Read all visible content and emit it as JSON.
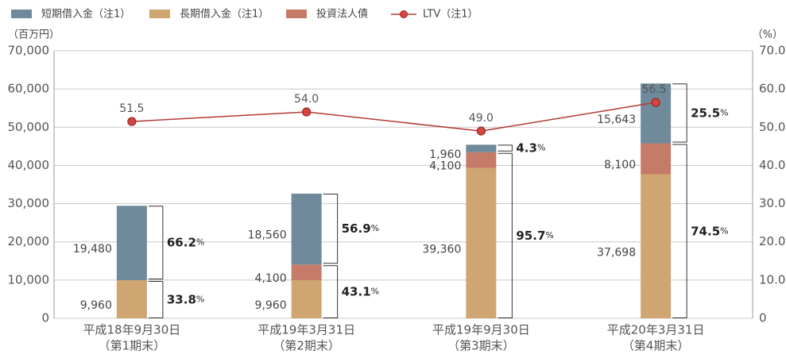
{
  "chart_data": {
    "type": "bar",
    "stacked": true,
    "y_label": "（百万円）",
    "y2_label": "（%）",
    "categories": [
      "平成18年9月30日",
      "平成19年3月31日",
      "平成19年9月30日",
      "平成20年3月31日"
    ],
    "periods": [
      "（第1期末）",
      "（第2期末）",
      "（第3期末）",
      "（第4期末）"
    ],
    "series": [
      {
        "name": "短期借入金（注1）",
        "color": "#6f8a9b",
        "values": [
          19480,
          18560,
          1960,
          15643
        ],
        "value_labels": [
          "19,480",
          "18,560",
          "1,960",
          "15,643"
        ]
      },
      {
        "name": "長期借入金（注1）",
        "color": "#cfa671",
        "values": [
          9960,
          9960,
          39360,
          37698
        ],
        "value_labels": [
          "9,960",
          "9,960",
          "39,360",
          "37,698"
        ]
      },
      {
        "name": "投資法人債",
        "color": "#c67b69",
        "values": [
          null,
          4100,
          4100,
          8100
        ],
        "value_labels": [
          null,
          "4,100",
          "4,100",
          "8,100"
        ]
      },
      {
        "name": "LTV（注1）",
        "type": "line",
        "axis": "y2",
        "color": "#b23a36",
        "values": [
          51.5,
          54.0,
          49.0,
          56.5
        ],
        "value_labels": [
          "51.5",
          "54.0",
          "49.0",
          "56.5"
        ]
      }
    ],
    "shares": {
      "unit": "%",
      "short": [
        66.2,
        56.9,
        4.3,
        25.5
      ],
      "long": [
        33.8,
        43.1,
        95.7,
        74.5
      ]
    },
    "ylim": [
      0,
      70000
    ],
    "yticks": [
      0,
      {
        "value": 10000,
        "label": "10,000"
      },
      {
        "value": 20000,
        "label": "20,000"
      },
      {
        "value": 30000,
        "label": "30,000"
      },
      {
        "value": 40000,
        "label": "40,000"
      },
      {
        "value": 50000,
        "label": "50,000"
      },
      {
        "value": 60000,
        "label": "60,000"
      },
      {
        "value": 70000,
        "label": "70,000"
      }
    ],
    "y2lim": [
      0,
      70
    ],
    "y2ticks": [
      0,
      {
        "value": 10,
        "label": "10.0"
      },
      {
        "value": 20,
        "label": "20.0"
      },
      {
        "value": 30,
        "label": "30.0"
      },
      {
        "value": 40,
        "label": "40.0"
      },
      {
        "value": 50,
        "label": "50.0"
      },
      {
        "value": 60,
        "label": "60.0"
      },
      {
        "value": 70,
        "label": "70.0"
      }
    ],
    "grid": true
  }
}
